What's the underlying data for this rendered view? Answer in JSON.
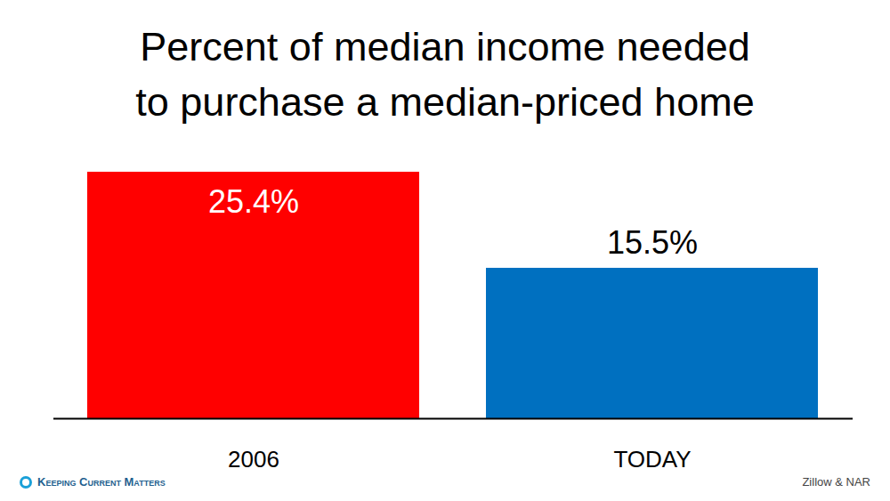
{
  "chart_data": {
    "type": "bar",
    "title": "Percent of median income needed to purchase a median-priced home",
    "categories": [
      "2006",
      "TODAY"
    ],
    "values": [
      25.4,
      15.5
    ],
    "value_labels": [
      "25.4%",
      "15.5%"
    ],
    "colors": [
      "#ff0000",
      "#0070c0"
    ],
    "ylim": [
      0,
      25.4
    ],
    "data_labels": true,
    "tick_labels": "x",
    "brand": "Keeping Current Matters",
    "source": "Zillow & NAR"
  }
}
